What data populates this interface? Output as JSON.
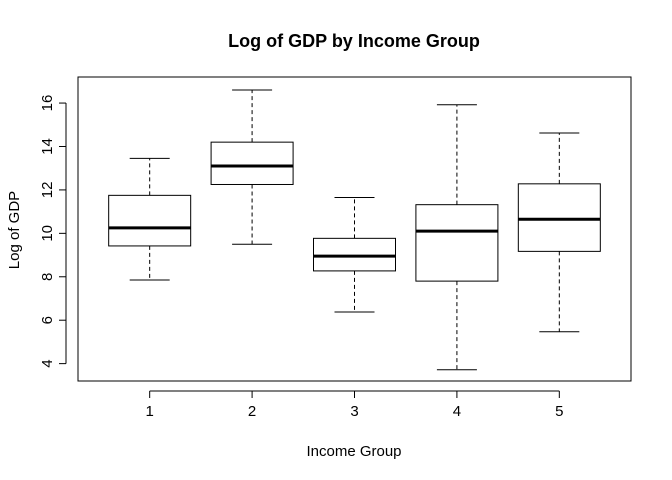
{
  "chart_data": {
    "type": "boxplot",
    "title": "Log of GDP by Income Group",
    "xlabel": "Income Group",
    "ylabel": "Log of GDP",
    "categories": [
      "1",
      "2",
      "3",
      "4",
      "5"
    ],
    "ylim": [
      3.2,
      17.2
    ],
    "yticks": [
      4,
      6,
      8,
      10,
      12,
      14,
      16
    ],
    "boxes": [
      {
        "group": "1",
        "whisker_low": 7.85,
        "q1": 9.42,
        "median": 10.25,
        "q3": 11.75,
        "whisker_high": 13.45
      },
      {
        "group": "2",
        "whisker_low": 9.5,
        "q1": 12.25,
        "median": 13.1,
        "q3": 14.2,
        "whisker_high": 16.6
      },
      {
        "group": "3",
        "whisker_low": 6.38,
        "q1": 8.27,
        "median": 8.95,
        "q3": 9.77,
        "whisker_high": 11.65
      },
      {
        "group": "4",
        "whisker_low": 3.72,
        "q1": 7.8,
        "median": 10.1,
        "q3": 11.32,
        "whisker_high": 15.92
      },
      {
        "group": "5",
        "whisker_low": 5.47,
        "q1": 9.17,
        "median": 10.65,
        "q3": 12.28,
        "whisker_high": 14.62
      }
    ],
    "grid": false,
    "legend": "none"
  }
}
